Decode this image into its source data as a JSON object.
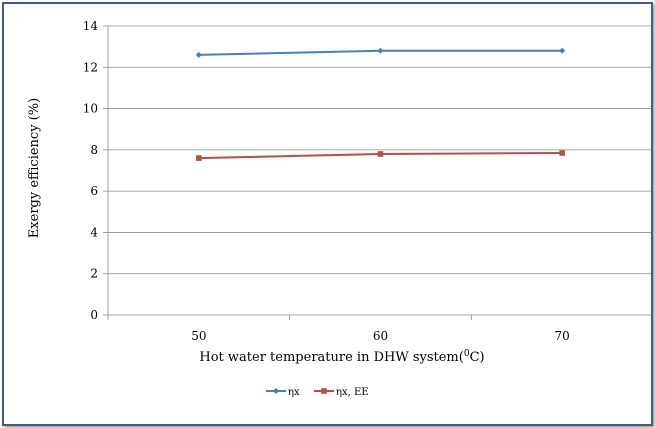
{
  "chart_data": {
    "type": "line",
    "categories": [
      "50",
      "60",
      "70"
    ],
    "series": [
      {
        "name": "ηx",
        "values": [
          12.6,
          12.8,
          12.8
        ],
        "color": "#4a7ebb",
        "marker": "diamond"
      },
      {
        "name": "ηx, EE",
        "values": [
          7.6,
          7.8,
          7.85
        ],
        "color": "#be4b48",
        "marker": "square"
      }
    ],
    "xlabel": "Hot water temperature in DHW system(",
    "xlabel_sup": "0",
    "xlabel_end": "C)",
    "ylabel": "Exergy efficiency (%)",
    "ylim": [
      0,
      14
    ],
    "yticks": [
      "0",
      "2",
      "4",
      "6",
      "8",
      "10",
      "12",
      "14"
    ],
    "grid": true,
    "legend": "bottom"
  }
}
